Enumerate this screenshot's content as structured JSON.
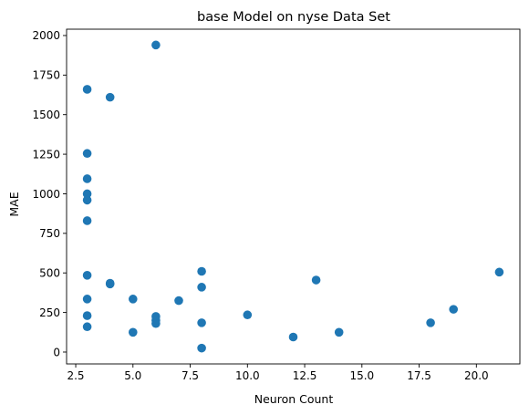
{
  "chart_data": {
    "type": "scatter",
    "title": "base Model on nyse Data Set",
    "xlabel": "Neuron Count",
    "ylabel": "MAE",
    "xlim": [
      2.1,
      21.9
    ],
    "ylim": [
      -75,
      2040
    ],
    "xticks": [
      2.5,
      5.0,
      7.5,
      10.0,
      12.5,
      15.0,
      17.5,
      20.0
    ],
    "xtick_labels": [
      "2.5",
      "5.0",
      "7.5",
      "10.0",
      "12.5",
      "15.0",
      "17.5",
      "20.0"
    ],
    "yticks": [
      0,
      250,
      500,
      750,
      1000,
      1250,
      1500,
      1750,
      2000
    ],
    "ytick_labels": [
      "0",
      "250",
      "500",
      "750",
      "1000",
      "1250",
      "1500",
      "1750",
      "2000"
    ],
    "grid": false,
    "marker_color": "#1f77b4",
    "series": [
      {
        "name": "",
        "points": [
          [
            3,
            1660
          ],
          [
            3,
            1255
          ],
          [
            3,
            1095
          ],
          [
            3,
            1000
          ],
          [
            3,
            960
          ],
          [
            3,
            830
          ],
          [
            3,
            485
          ],
          [
            3,
            335
          ],
          [
            3,
            230
          ],
          [
            3,
            160
          ],
          [
            4,
            1610
          ],
          [
            4,
            435
          ],
          [
            4,
            430
          ],
          [
            5,
            335
          ],
          [
            5,
            125
          ],
          [
            6,
            1940
          ],
          [
            6,
            225
          ],
          [
            6,
            200
          ],
          [
            6,
            180
          ],
          [
            7,
            325
          ],
          [
            8,
            510
          ],
          [
            8,
            410
          ],
          [
            8,
            185
          ],
          [
            8,
            25
          ],
          [
            10,
            235
          ],
          [
            12,
            95
          ],
          [
            13,
            455
          ],
          [
            14,
            125
          ],
          [
            18,
            185
          ],
          [
            19,
            270
          ],
          [
            21,
            505
          ]
        ]
      }
    ]
  }
}
